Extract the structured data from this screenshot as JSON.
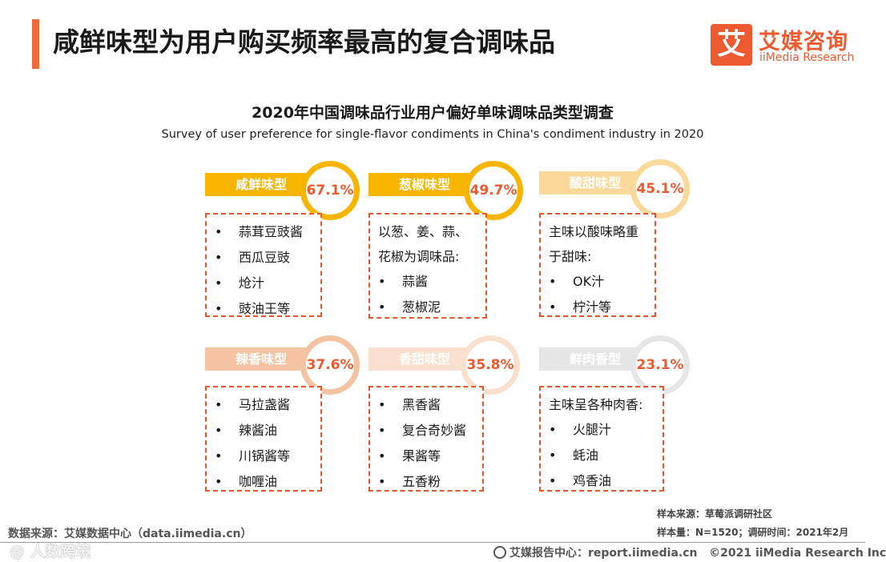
{
  "header": {
    "title": "咸鲜味型为用户购买频率最高的复合调味品",
    "accent_color": "#f06a3d"
  },
  "logo": {
    "mark": "艾",
    "name_cn": "艾媒咨询",
    "name_en": "iiMedia Research",
    "color": "#ee5a2f"
  },
  "chart_data": {
    "type": "table",
    "title": "2020年中国调味品行业用户偏好单味调味品类型调查",
    "subtitle": "Survey of user preference for single-flavor condiments in China's condiment industry in 2020",
    "unit": "%",
    "categories": [
      {
        "name": "咸鲜味型",
        "value": 67.1,
        "label": "67.1%",
        "bar_color": "#f7b500",
        "ring_color": "#f7b500",
        "intro": [],
        "items": [
          "蒜茸豆豉酱",
          "西瓜豆豉",
          "炝汁",
          "豉油王等"
        ]
      },
      {
        "name": "葱椒味型",
        "value": 49.7,
        "label": "49.7%",
        "bar_color": "#f7b500",
        "ring_color": "#f7b500",
        "intro": [
          "以葱、姜、蒜、",
          "花椒为调味品:"
        ],
        "items": [
          "蒜酱",
          "葱椒泥"
        ]
      },
      {
        "name": "酸甜味型",
        "value": 45.1,
        "label": "45.1%",
        "bar_color": "#fbd99a",
        "ring_color": "#fbd99a",
        "intro": [
          "主味以酸味略重",
          "于甜味:"
        ],
        "items": [
          "OK汁",
          "柠汁等"
        ]
      },
      {
        "name": "辣香味型",
        "value": 37.6,
        "label": "37.6%",
        "bar_color": "#f5c2a2",
        "ring_color": "#f5c2a2",
        "intro": [],
        "items": [
          "马拉盏酱",
          "辣酱油",
          "川锅酱等",
          "咖喱油"
        ]
      },
      {
        "name": "香甜味型",
        "value": 35.8,
        "label": "35.8%",
        "bar_color": "#fae0cf",
        "ring_color": "#fae0cf",
        "intro": [],
        "items": [
          "黑香酱",
          "复合奇妙酱",
          "果酱等",
          "五香粉"
        ]
      },
      {
        "name": "鲜肉香型",
        "value": 23.1,
        "label": "23.1%",
        "bar_color": "#e6e6e6",
        "ring_color": "#e6e6e6",
        "intro": [
          "主味呈各种肉香:"
        ],
        "items": [
          "火腿汁",
          "蚝油",
          "鸡香油"
        ]
      }
    ]
  },
  "sample": {
    "source": "样本来源：草莓派调研社区",
    "meta": "样本量：N=1520；调研时间：2021年2月"
  },
  "footer": {
    "data_source": "数据来源：艾媒数据中心（data.iimedia.cn）",
    "report_center": "艾媒报告中心：report.iimedia.cn",
    "copyright": "©2021  iiMedia Research  Inc",
    "watermark": "@ 人数跨境"
  }
}
